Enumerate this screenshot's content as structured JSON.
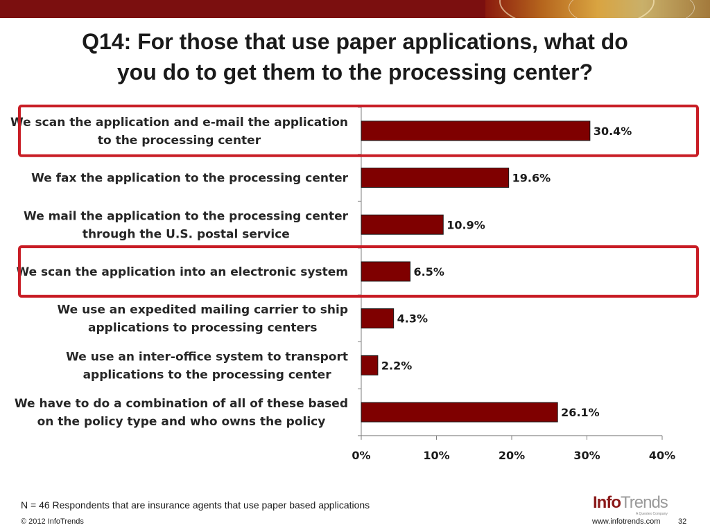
{
  "title": {
    "line1": "Q14: For those that use paper applications, what do",
    "line2": "you do to get them to the processing center?"
  },
  "chart_data": {
    "type": "bar",
    "orientation": "horizontal",
    "categories": [
      [
        "We scan the application and e-mail the application",
        "to the processing center"
      ],
      [
        "We fax the application to the processing center"
      ],
      [
        "We mail the application to the processing center",
        "through the U.S. postal service"
      ],
      [
        "We scan the application into an electronic system"
      ],
      [
        "We use an expedited mailing carrier to ship",
        "applications to processing centers"
      ],
      [
        "We use an inter-office system to transport",
        "applications to the processing center"
      ],
      [
        "We have to do a combination of all of these based",
        "on the policy type and who owns the policy"
      ]
    ],
    "values": [
      30.4,
      19.6,
      10.9,
      6.5,
      4.3,
      2.2,
      26.1
    ],
    "value_labels": [
      "30.4%",
      "19.6%",
      "10.9%",
      "6.5%",
      "4.3%",
      "2.2%",
      "26.1%"
    ],
    "xlim": [
      0,
      40
    ],
    "xticks": [
      0,
      10,
      20,
      30,
      40
    ],
    "xtick_labels": [
      "0%",
      "10%",
      "20%",
      "30%",
      "40%"
    ],
    "highlighted": [
      0,
      3
    ],
    "bar_color": "#7f0000",
    "highlight_color": "#c81d25",
    "grid": false
  },
  "footer": {
    "note": "N = 46 Respondents that are insurance agents that use paper based applications",
    "copyright": "© 2012 InfoTrends",
    "website": "www.infotrends.com",
    "page": "32"
  },
  "logo": {
    "part1": "Info",
    "part2": "Trends",
    "tagline": "A Questex Company"
  },
  "colors": {
    "header_bar": "#7b0f0f"
  }
}
